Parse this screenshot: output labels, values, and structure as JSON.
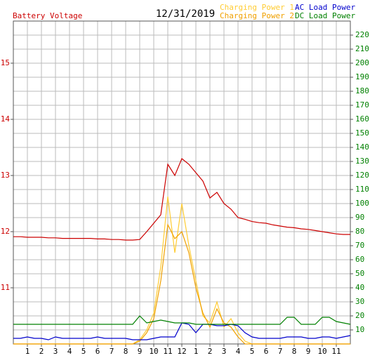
{
  "chart_data": {
    "type": "line",
    "title": "12/31/2019",
    "x": [
      0,
      0.5,
      1,
      1.5,
      2,
      2.5,
      3,
      3.5,
      4,
      4.5,
      5,
      5.5,
      6,
      6.5,
      7,
      7.5,
      8,
      8.5,
      9,
      9.5,
      10,
      10.5,
      11,
      11.5,
      12,
      12.5,
      13,
      13.5,
      14,
      14.5,
      15,
      15.5,
      16,
      16.5,
      17,
      17.5,
      18,
      18.5,
      19,
      19.5,
      20,
      20.5,
      21,
      21.5,
      22,
      22.5,
      23,
      23.5,
      24
    ],
    "xlim": [
      0,
      24
    ],
    "xticks": [
      1,
      2,
      3,
      4,
      5,
      6,
      7,
      8,
      9,
      10,
      11,
      12,
      {
        "value": 13,
        "label": "1"
      },
      {
        "value": 14,
        "label": "2"
      },
      {
        "value": 15,
        "label": "3"
      },
      {
        "value": 16,
        "label": "4"
      },
      {
        "value": 17,
        "label": "5"
      },
      {
        "value": 18,
        "label": "6"
      },
      {
        "value": 19,
        "label": "7"
      },
      {
        "value": 20,
        "label": "8"
      },
      {
        "value": 21,
        "label": "9"
      },
      {
        "value": 22,
        "label": "10"
      },
      {
        "value": 23,
        "label": "11"
      }
    ],
    "ylim": [
      10,
      15.75
    ],
    "yticks": [
      11,
      12,
      13,
      14,
      15
    ],
    "y2lim": [
      0,
      230
    ],
    "y2ticks": [
      10,
      20,
      30,
      40,
      50,
      60,
      70,
      80,
      90,
      100,
      110,
      120,
      130,
      140,
      150,
      160,
      170,
      180,
      190,
      200,
      210,
      220
    ],
    "grid": true,
    "series": [
      {
        "name": "Battery Voltage",
        "color": "#cc0000",
        "values": [
          11.91,
          11.91,
          11.9,
          11.9,
          11.9,
          11.89,
          11.89,
          11.88,
          11.88,
          11.88,
          11.88,
          11.88,
          11.87,
          11.87,
          11.86,
          11.86,
          11.85,
          11.85,
          11.86,
          12.0,
          12.15,
          12.3,
          13.2,
          13.0,
          13.3,
          13.2,
          13.05,
          12.9,
          12.6,
          12.7,
          12.5,
          12.4,
          12.25,
          12.22,
          12.18,
          12.16,
          12.15,
          12.12,
          12.1,
          12.08,
          12.07,
          12.05,
          12.04,
          12.02,
          12.0,
          11.98,
          11.96,
          11.95,
          11.95
        ]
      },
      {
        "name": "Charging Power 1",
        "color": "#ffcc33",
        "axis": "y2",
        "values": [
          0,
          0,
          0,
          0,
          0,
          0,
          0,
          0,
          0,
          0,
          0,
          0,
          0,
          0,
          0,
          0,
          0,
          0,
          3,
          10,
          22,
          55,
          105,
          65,
          100,
          70,
          45,
          20,
          15,
          30,
          12,
          18,
          8,
          2,
          0,
          0,
          0,
          0,
          0,
          0,
          0,
          0,
          0,
          0,
          0,
          0,
          0,
          0,
          0
        ]
      },
      {
        "name": "Charging Power 2",
        "color": "#f0a000",
        "axis": "y2",
        "values": [
          0,
          0,
          0,
          0,
          0,
          0,
          0,
          0,
          0,
          0,
          0,
          0,
          0,
          0,
          0,
          0,
          0,
          0,
          2,
          8,
          18,
          45,
          85,
          75,
          80,
          65,
          40,
          22,
          12,
          25,
          15,
          12,
          5,
          0,
          0,
          0,
          0,
          0,
          0,
          0,
          0,
          0,
          0,
          0,
          0,
          0,
          0,
          0,
          0
        ]
      },
      {
        "name": "AC Load Power",
        "color": "#0000cc",
        "axis": "y2",
        "values": [
          4,
          4,
          5,
          4,
          4,
          3,
          5,
          4,
          4,
          4,
          4,
          4,
          5,
          4,
          4,
          4,
          4,
          3,
          3,
          3,
          4,
          5,
          5,
          5,
          15,
          14,
          8,
          14,
          14,
          13,
          13,
          14,
          13,
          8,
          5,
          4,
          4,
          4,
          4,
          5,
          5,
          5,
          4,
          4,
          5,
          5,
          4,
          5,
          6
        ]
      },
      {
        "name": "DC Load Power",
        "color": "#008000",
        "axis": "y2",
        "values": [
          14,
          14,
          14,
          14,
          14,
          14,
          14,
          14,
          14,
          14,
          14,
          14,
          14,
          14,
          14,
          14,
          14,
          14,
          20,
          15,
          16,
          17,
          16,
          15,
          15,
          15,
          14,
          14,
          14,
          14,
          14,
          14,
          14,
          14,
          14,
          14,
          14,
          14,
          14,
          19,
          19,
          14,
          14,
          14,
          19,
          19,
          16,
          15,
          14
        ]
      }
    ]
  }
}
